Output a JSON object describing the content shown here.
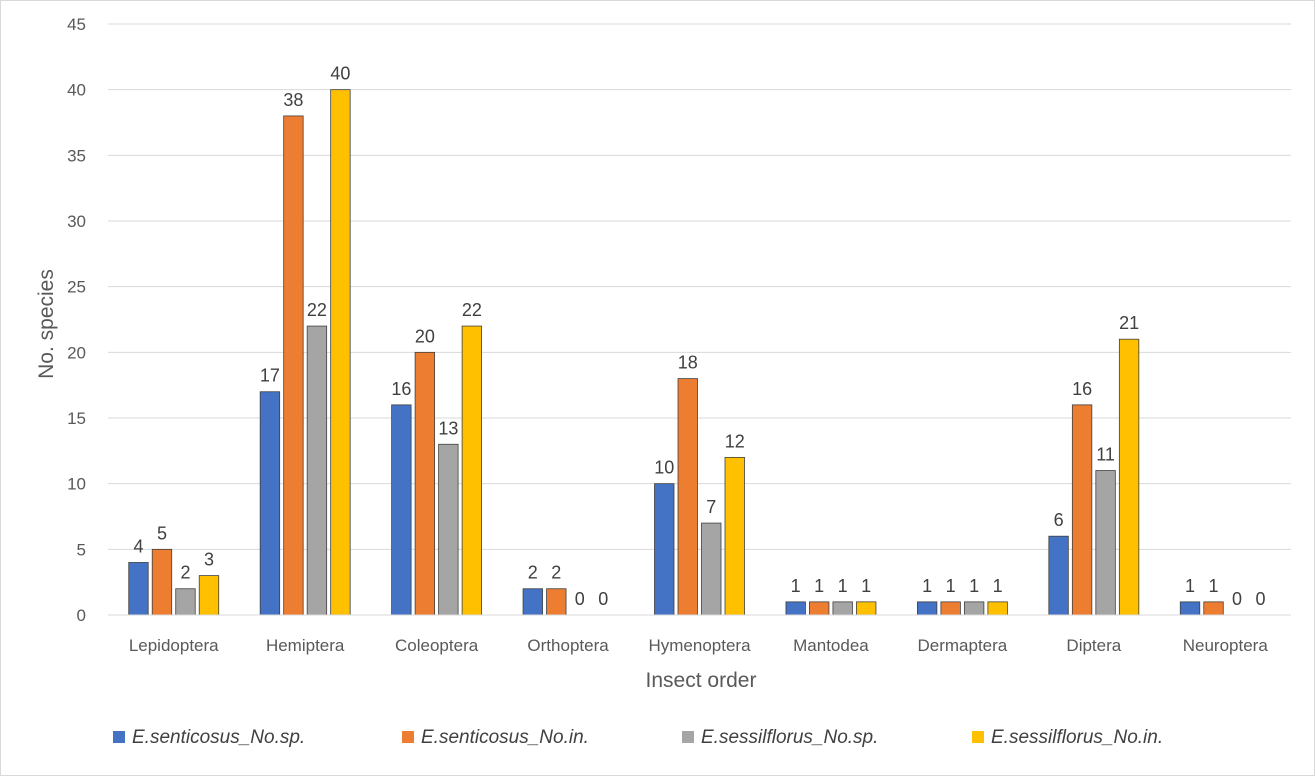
{
  "chart_data": {
    "type": "bar",
    "title": "",
    "xlabel": "Insect order",
    "ylabel": "No. species",
    "ylim": [
      0,
      45
    ],
    "ytick_step": 5,
    "grid": true,
    "legend_position": "bottom",
    "categories": [
      "Lepidoptera",
      "Hemiptera",
      "Coleoptera",
      "Orthoptera",
      "Hymenoptera",
      "Mantodea",
      "Dermaptera",
      "Diptera",
      "Neuroptera"
    ],
    "series": [
      {
        "name": "E.senticosus_No.sp.",
        "color": "#4472c4",
        "values": [
          4,
          17,
          16,
          2,
          10,
          1,
          1,
          6,
          1
        ]
      },
      {
        "name": "E.senticosus_No.in.",
        "color": "#ed7d31",
        "values": [
          5,
          38,
          20,
          2,
          18,
          1,
          1,
          16,
          1
        ]
      },
      {
        "name": "E.sessilflorus_No.sp.",
        "color": "#a5a5a5",
        "values": [
          2,
          22,
          13,
          0,
          7,
          1,
          1,
          11,
          0
        ]
      },
      {
        "name": "E.sessilflorus_No.in.",
        "color": "#ffc000",
        "values": [
          3,
          40,
          22,
          0,
          12,
          1,
          1,
          21,
          0
        ]
      }
    ]
  }
}
